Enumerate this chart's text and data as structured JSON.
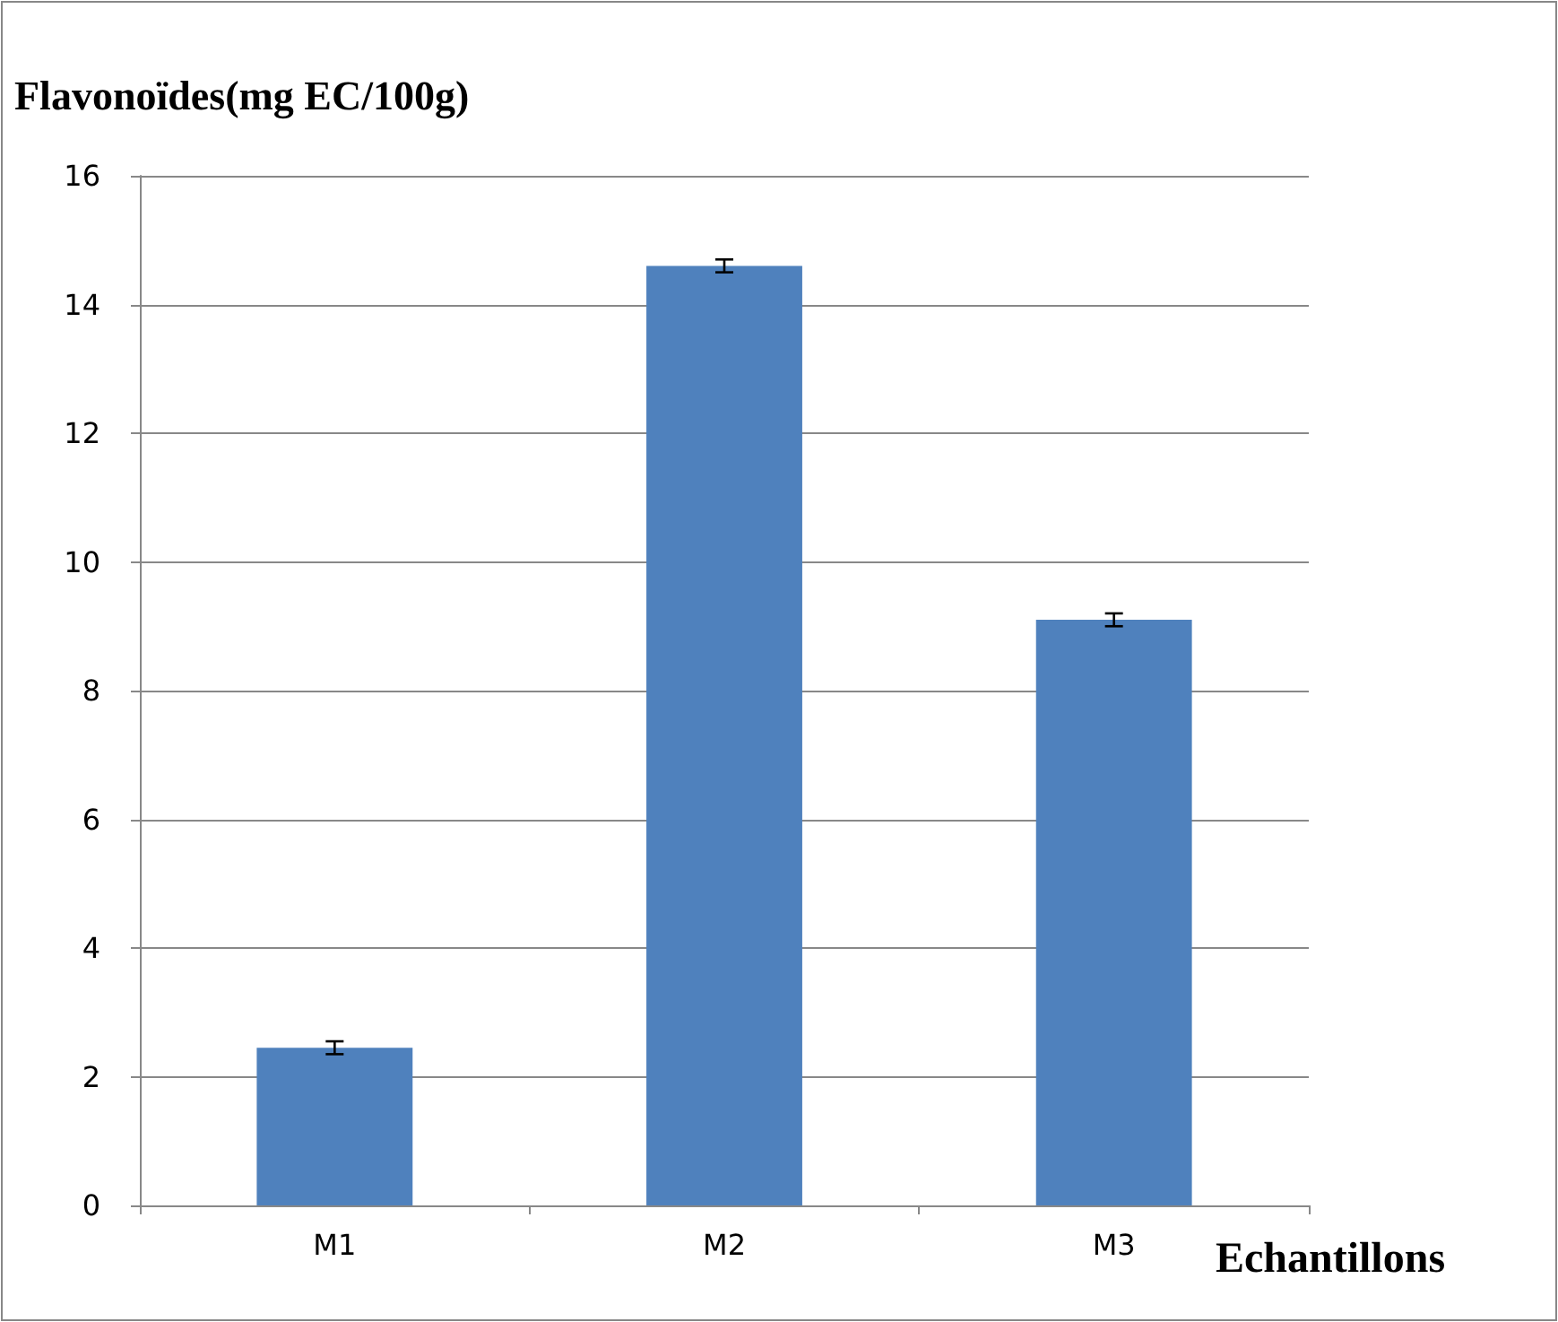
{
  "chart_data": {
    "type": "bar",
    "ylabel": "Flavonoïdes(mg EC/100g)",
    "xlabel": "Echantillons",
    "categories": [
      "M1",
      "M2",
      "M3"
    ],
    "values": [
      2.45,
      14.6,
      9.1
    ],
    "errors": [
      0.1,
      0.1,
      0.1
    ],
    "color": "#4f81bd",
    "ylim": [
      0,
      16
    ],
    "yticks": [
      0,
      2,
      4,
      6,
      8,
      10,
      12,
      14,
      16
    ],
    "grid": "y"
  }
}
